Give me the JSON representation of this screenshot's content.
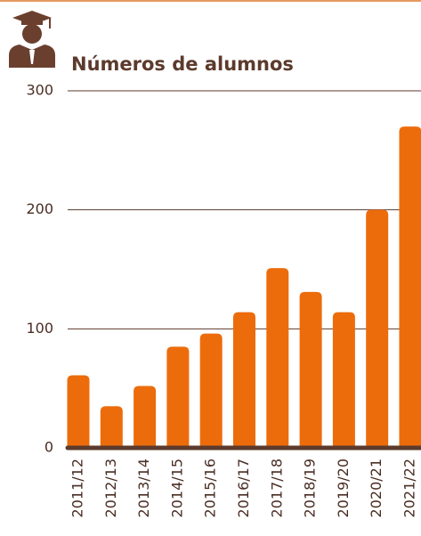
{
  "chart_data": {
    "type": "bar",
    "title": "Números de alumnos",
    "categories": [
      "2011/12",
      "2012/13",
      "2013/14",
      "2014/15",
      "2015/16",
      "2016/17",
      "2017/18",
      "2018/19",
      "2019/20",
      "2020/21",
      "2021/22"
    ],
    "values": [
      61,
      35,
      52,
      85,
      96,
      114,
      151,
      131,
      114,
      200,
      270
    ],
    "color": "#ec6c0b",
    "ylim": [
      0,
      300
    ],
    "yticks": [
      0,
      100,
      200,
      300
    ],
    "grid": true
  }
}
